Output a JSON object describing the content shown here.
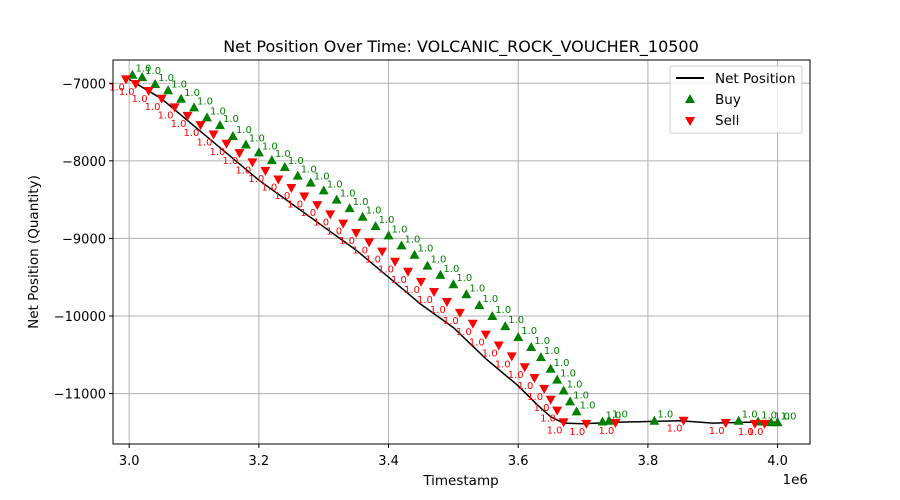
{
  "chart_data": {
    "type": "line",
    "title": "Net Position Over Time: VOLCANIC_ROCK_VOUCHER_10500",
    "xlabel": "Timestamp",
    "ylabel": "Net Position (Quantity)",
    "x_offset_label": "1e6",
    "xlim": [
      2.975,
      4.05
    ],
    "ylim": [
      -11650,
      -6700
    ],
    "x_ticks": [
      3.0,
      3.2,
      3.4,
      3.6,
      3.8,
      4.0
    ],
    "x_tick_labels": [
      "3.0",
      "3.2",
      "3.4",
      "3.6",
      "3.8",
      "4.0"
    ],
    "y_ticks": [
      -7000,
      -8000,
      -9000,
      -10000,
      -11000
    ],
    "y_tick_labels": [
      "−7000",
      "−8000",
      "−9000",
      "−10000",
      "−11000"
    ],
    "grid": true,
    "legend_position": "top-right",
    "colors": {
      "line": "#000000",
      "buy": "#008000",
      "sell": "#ff0000"
    },
    "series": [
      {
        "name": "Net Position",
        "style": "line",
        "points": [
          [
            3.0,
            -6950
          ],
          [
            3.05,
            -7200
          ],
          [
            3.1,
            -7550
          ],
          [
            3.15,
            -7900
          ],
          [
            3.2,
            -8250
          ],
          [
            3.25,
            -8550
          ],
          [
            3.3,
            -8850
          ],
          [
            3.35,
            -9150
          ],
          [
            3.4,
            -9500
          ],
          [
            3.45,
            -9850
          ],
          [
            3.5,
            -10150
          ],
          [
            3.55,
            -10550
          ],
          [
            3.6,
            -10900
          ],
          [
            3.63,
            -11150
          ],
          [
            3.65,
            -11300
          ],
          [
            3.67,
            -11380
          ],
          [
            3.7,
            -11390
          ],
          [
            3.75,
            -11370
          ],
          [
            3.8,
            -11360
          ],
          [
            3.85,
            -11350
          ],
          [
            3.9,
            -11380
          ],
          [
            3.95,
            -11370
          ],
          [
            4.0,
            -11370
          ]
        ]
      },
      {
        "name": "Buy",
        "style": "marker-up",
        "label": "1.0",
        "points": [
          [
            3.005,
            -6890
          ],
          [
            3.02,
            -6920
          ],
          [
            3.04,
            -7010
          ],
          [
            3.06,
            -7090
          ],
          [
            3.08,
            -7200
          ],
          [
            3.1,
            -7310
          ],
          [
            3.12,
            -7440
          ],
          [
            3.14,
            -7540
          ],
          [
            3.16,
            -7680
          ],
          [
            3.18,
            -7790
          ],
          [
            3.2,
            -7890
          ],
          [
            3.22,
            -7990
          ],
          [
            3.24,
            -8080
          ],
          [
            3.26,
            -8190
          ],
          [
            3.28,
            -8280
          ],
          [
            3.3,
            -8380
          ],
          [
            3.32,
            -8500
          ],
          [
            3.34,
            -8610
          ],
          [
            3.36,
            -8720
          ],
          [
            3.38,
            -8840
          ],
          [
            3.4,
            -8960
          ],
          [
            3.42,
            -9090
          ],
          [
            3.44,
            -9210
          ],
          [
            3.46,
            -9350
          ],
          [
            3.48,
            -9470
          ],
          [
            3.5,
            -9590
          ],
          [
            3.52,
            -9720
          ],
          [
            3.54,
            -9860
          ],
          [
            3.56,
            -10000
          ],
          [
            3.58,
            -10130
          ],
          [
            3.6,
            -10270
          ],
          [
            3.62,
            -10400
          ],
          [
            3.635,
            -10530
          ],
          [
            3.65,
            -10680
          ],
          [
            3.66,
            -10820
          ],
          [
            3.67,
            -10960
          ],
          [
            3.68,
            -11100
          ],
          [
            3.69,
            -11230
          ],
          [
            3.73,
            -11360
          ],
          [
            3.74,
            -11350
          ],
          [
            3.81,
            -11350
          ],
          [
            3.94,
            -11350
          ],
          [
            3.97,
            -11360
          ],
          [
            3.99,
            -11370
          ],
          [
            4.0,
            -11370
          ]
        ]
      },
      {
        "name": "Sell",
        "style": "marker-down",
        "label": "1.0",
        "points": [
          [
            2.995,
            -6950
          ],
          [
            3.01,
            -7010
          ],
          [
            3.03,
            -7100
          ],
          [
            3.05,
            -7200
          ],
          [
            3.07,
            -7310
          ],
          [
            3.09,
            -7420
          ],
          [
            3.11,
            -7540
          ],
          [
            3.13,
            -7660
          ],
          [
            3.15,
            -7780
          ],
          [
            3.17,
            -7900
          ],
          [
            3.19,
            -8020
          ],
          [
            3.21,
            -8130
          ],
          [
            3.23,
            -8240
          ],
          [
            3.25,
            -8350
          ],
          [
            3.27,
            -8460
          ],
          [
            3.29,
            -8570
          ],
          [
            3.31,
            -8690
          ],
          [
            3.33,
            -8810
          ],
          [
            3.35,
            -8930
          ],
          [
            3.37,
            -9050
          ],
          [
            3.39,
            -9170
          ],
          [
            3.41,
            -9300
          ],
          [
            3.43,
            -9430
          ],
          [
            3.45,
            -9560
          ],
          [
            3.47,
            -9690
          ],
          [
            3.49,
            -9820
          ],
          [
            3.51,
            -9960
          ],
          [
            3.53,
            -10100
          ],
          [
            3.55,
            -10240
          ],
          [
            3.57,
            -10380
          ],
          [
            3.59,
            -10520
          ],
          [
            3.61,
            -10660
          ],
          [
            3.625,
            -10800
          ],
          [
            3.64,
            -10940
          ],
          [
            3.65,
            -11080
          ],
          [
            3.66,
            -11220
          ],
          [
            3.67,
            -11370
          ],
          [
            3.705,
            -11390
          ],
          [
            3.75,
            -11380
          ],
          [
            3.855,
            -11350
          ],
          [
            3.92,
            -11380
          ],
          [
            3.965,
            -11390
          ],
          [
            3.98,
            -11390
          ]
        ]
      }
    ]
  }
}
